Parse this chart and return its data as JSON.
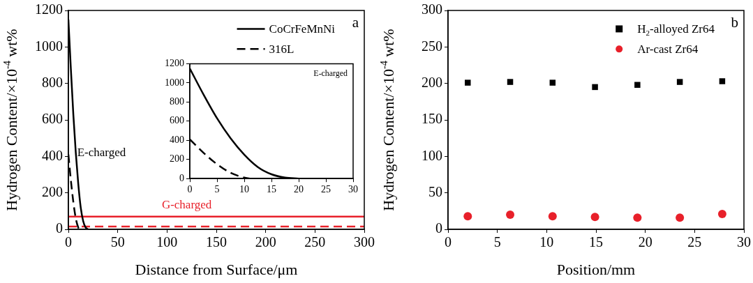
{
  "chart_data": [
    {
      "type": "line",
      "xlabel": "Distance from Surface/μm",
      "ylabel": "Hydrogen Content/×10$^{-4}$ wt%",
      "xlim": [
        0,
        300
      ],
      "ylim": [
        0,
        1200
      ],
      "xticks": [
        0,
        50,
        100,
        150,
        200,
        250,
        300
      ],
      "yticks": [
        0,
        200,
        400,
        600,
        800,
        1000,
        1200
      ],
      "legend": "top right",
      "marker": "none",
      "series": [
        {
          "name": "CoCrFeMnNi",
          "color": "#000000",
          "line_style": "solid",
          "x": [
            0,
            2.5,
            5,
            7.5,
            10,
            12.5,
            15,
            17.5,
            20
          ],
          "values": [
            1150,
            880,
            630,
            420,
            250,
            120,
            45,
            10,
            0
          ]
        },
        {
          "name": "316L",
          "color": "#000000",
          "line_style": "dashed",
          "x": [
            0,
            2.5,
            5,
            7.5,
            10,
            11
          ],
          "values": [
            410,
            270,
            150,
            60,
            10,
            0
          ]
        }
      ],
      "ref_lines": [
        {
          "axis": "y",
          "value": 70,
          "label": "G-charged",
          "color": "#e8202a",
          "line_style": "solid"
        },
        {
          "axis": "y",
          "value": 15,
          "color": "#e8202a",
          "line_style": "dashed"
        }
      ],
      "annotations": [
        {
          "text": "E-charged",
          "x": 9,
          "y": 400
        },
        "a"
      ]
    },
    {
      "type": "line",
      "xlim": [
        0,
        30
      ],
      "ylim": [
        0,
        1200
      ],
      "xticks": [
        0,
        5,
        10,
        15,
        20,
        25,
        30
      ],
      "yticks": [
        0,
        200,
        400,
        600,
        800,
        1000,
        1200
      ],
      "marker": "none",
      "series": [
        {
          "color": "#000000",
          "line_style": "solid",
          "x": [
            0,
            2.5,
            5,
            7.5,
            10,
            12.5,
            15,
            17.5,
            20
          ],
          "values": [
            1150,
            880,
            630,
            420,
            250,
            120,
            45,
            10,
            0
          ]
        },
        {
          "color": "#000000",
          "line_style": "dashed",
          "x": [
            0,
            2.5,
            5,
            7.5,
            10,
            11
          ],
          "values": [
            410,
            270,
            150,
            60,
            10,
            0
          ]
        }
      ],
      "annotations": [
        "E-charged"
      ]
    },
    {
      "type": "scatter",
      "xlabel": "Position/mm",
      "ylabel": "Hydrogen Content/×10$^{-4}$ wt%",
      "xlim": [
        0,
        30
      ],
      "ylim": [
        0,
        300
      ],
      "xticks": [
        0,
        5,
        10,
        15,
        20,
        25,
        30
      ],
      "yticks": [
        0,
        50,
        100,
        150,
        200,
        250,
        300
      ],
      "legend": "top right",
      "x": [
        2,
        6.3,
        10.6,
        14.9,
        19.2,
        23.5,
        27.8
      ],
      "series": [
        {
          "name": "H$_{2}$-alloyed Zr64",
          "color": "#000000",
          "marker": "square",
          "values": [
            201,
            202,
            201,
            195,
            198,
            202,
            203
          ]
        },
        {
          "name": "Ar-cast Zr64",
          "color": "#e8202a",
          "marker": "circle",
          "values": [
            18,
            20,
            18,
            17,
            16,
            16,
            21
          ]
        }
      ],
      "annotations": [
        "b"
      ]
    }
  ]
}
